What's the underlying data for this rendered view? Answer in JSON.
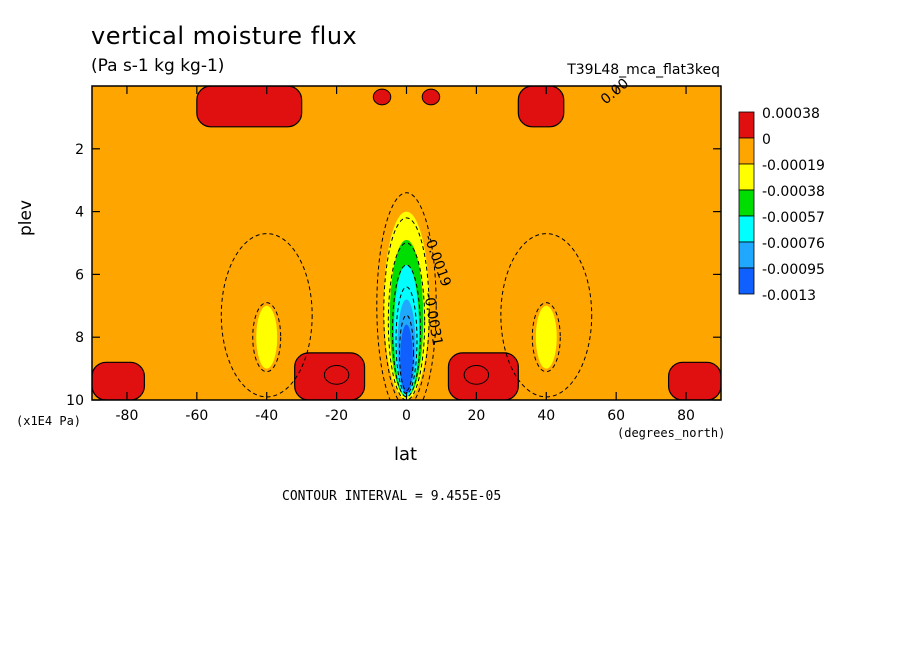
{
  "chart_data": {
    "type": "heatmap",
    "title": "vertical moisture flux",
    "subtitle": "(Pa s-1 kg kg-1)",
    "run_label": "T39L48_mca_flat3keq",
    "xlabel": "lat",
    "ylabel": "plev",
    "x_units": "(degrees_north)",
    "y_units": "(x1E4 Pa)",
    "contour_interval": "CONTOUR INTERVAL = 9.455E-05",
    "xlim": [
      -90,
      90
    ],
    "ylim": [
      10,
      0
    ],
    "x_ticks": [
      -80,
      -60,
      -40,
      -20,
      0,
      20,
      40,
      60,
      80
    ],
    "y_ticks": [
      2,
      4,
      6,
      8,
      10
    ],
    "contour_labels": [
      "0.00",
      "-0.0019",
      "-0.0031"
    ],
    "legend": {
      "placement": "right",
      "levels": [
        "0.00038",
        "0",
        "-0.00019",
        "-0.00038",
        "-0.00057",
        "-0.00076",
        "-0.00095",
        "-0.0013"
      ],
      "colors": [
        "#e01010",
        "#ffa500",
        "#ffff00",
        "#00dd00",
        "#00ffff",
        "#20a8ff",
        "#1060ff"
      ]
    },
    "regions": [
      {
        "band": "0.00038",
        "lat_range": [
          -60,
          -30
        ],
        "plev_range": [
          0,
          1.3
        ]
      },
      {
        "band": "0.00038",
        "lat_range": [
          32,
          45
        ],
        "plev_range": [
          0,
          1.3
        ]
      },
      {
        "band": "0.00038",
        "lat_range": [
          -90,
          -75
        ],
        "plev_range": [
          8.8,
          10
        ]
      },
      {
        "band": "0.00038",
        "lat_range": [
          75,
          90
        ],
        "plev_range": [
          8.8,
          10
        ]
      },
      {
        "band": "0.00038",
        "lat_range": [
          -32,
          -12
        ],
        "plev_range": [
          8.5,
          10
        ]
      },
      {
        "band": "0.00038",
        "lat_range": [
          12,
          32
        ],
        "plev_range": [
          8.5,
          10
        ]
      },
      {
        "band": "-0.00019",
        "lat_range": [
          -44,
          -36
        ],
        "plev_range": [
          7,
          9
        ]
      },
      {
        "band": "-0.00019",
        "lat_range": [
          36,
          44
        ],
        "plev_range": [
          7,
          9
        ]
      },
      {
        "band": "-0.0013",
        "lat_range": [
          -4,
          4
        ],
        "plev_range": [
          7,
          9.8
        ]
      }
    ]
  }
}
